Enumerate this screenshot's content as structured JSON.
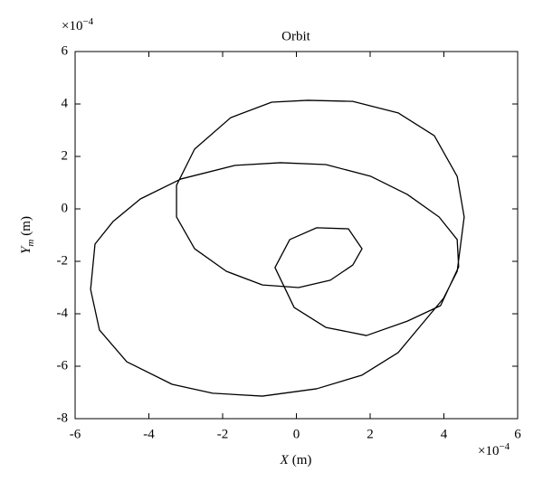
{
  "chart_data": {
    "type": "line",
    "title": "Orbit",
    "xlabel": {
      "symbol": "X",
      "unit": "(m)"
    },
    "ylabel": {
      "symbol": "Y",
      "subscript": "m",
      "unit": "(m)"
    },
    "x_multiplier": {
      "base": "×10",
      "exponent": "−4"
    },
    "y_multiplier": {
      "base": "×10",
      "exponent": "−4"
    },
    "xlim": [
      -6,
      6
    ],
    "ylim": [
      -8,
      6
    ],
    "xticks": [
      -6,
      -4,
      -2,
      0,
      2,
      4,
      6
    ],
    "yticks": [
      -8,
      -6,
      -4,
      -2,
      0,
      2,
      4,
      6
    ],
    "grid": false,
    "series": [
      {
        "color": "#000000",
        "x": [
          3.99,
          2.76,
          1.78,
          0.55,
          -0.92,
          -2.27,
          -3.37,
          -4.6,
          -5.34,
          -5.58,
          -5.46,
          -4.97,
          -4.23,
          -3.13,
          -1.66,
          -0.43,
          0.8,
          2.02,
          3.01,
          3.87,
          4.36,
          4.4,
          3.91,
          3.01,
          1.9,
          0.8,
          -0.06,
          -0.58,
          -0.18,
          0.55,
          1.41,
          1.78,
          1.53,
          0.92,
          0.06,
          -0.92,
          -1.9,
          -2.76,
          -3.25,
          -3.25,
          -2.76,
          -1.78,
          -0.67,
          0.31,
          1.53,
          2.76,
          3.74,
          4.36,
          4.55,
          4.36,
          3.99
        ],
        "values": [
          -3.41,
          -5.48,
          -6.34,
          -6.86,
          -7.14,
          -7.03,
          -6.69,
          -5.83,
          -4.62,
          -3.07,
          -1.34,
          -0.48,
          0.38,
          1.14,
          1.66,
          1.76,
          1.69,
          1.24,
          0.55,
          -0.31,
          -1.17,
          -2.21,
          -3.69,
          -4.28,
          -4.83,
          -4.52,
          -3.76,
          -2.24,
          -1.17,
          -0.72,
          -0.76,
          -1.52,
          -2.14,
          -2.72,
          -3.0,
          -2.9,
          -2.38,
          -1.52,
          -0.31,
          0.9,
          2.28,
          3.48,
          4.07,
          4.14,
          4.1,
          3.66,
          2.79,
          1.24,
          -0.31,
          -2.38,
          -3.41
        ]
      }
    ]
  }
}
